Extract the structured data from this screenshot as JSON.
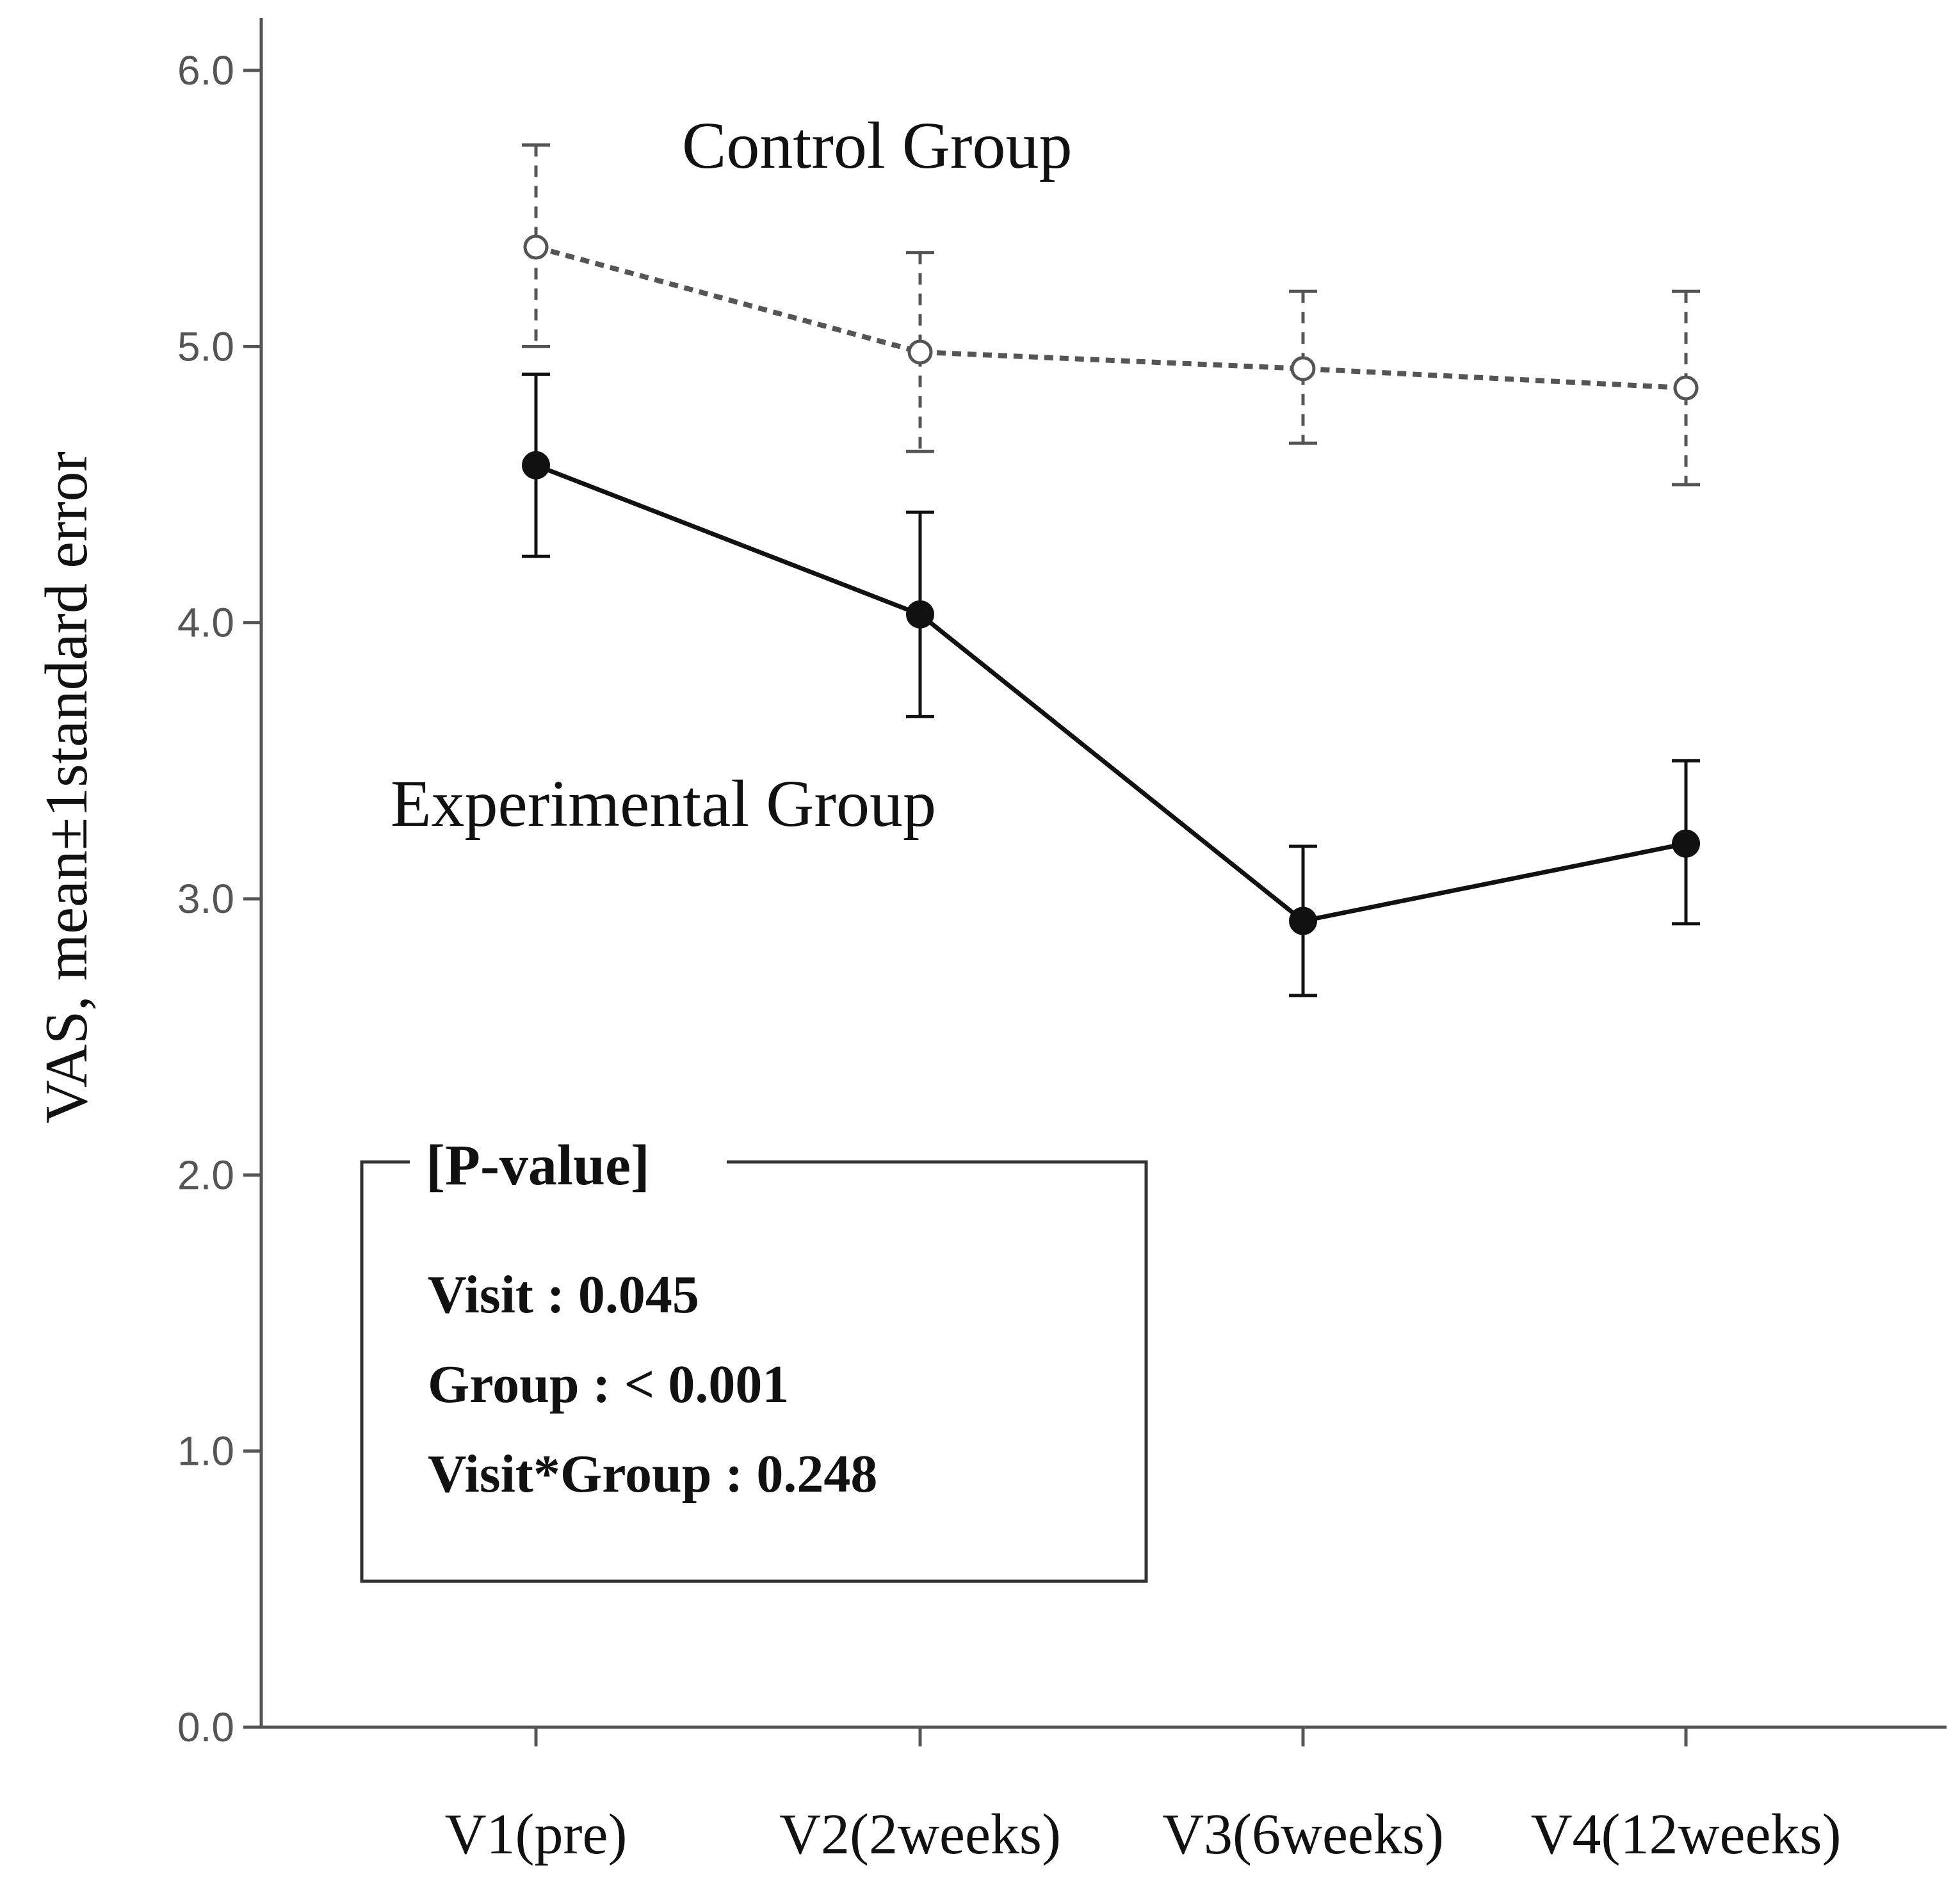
{
  "chart_data": {
    "type": "line",
    "title": "",
    "xlabel": "",
    "ylabel": "VAS, mean±1standard error",
    "ylim": [
      0,
      6
    ],
    "yticks": [
      "0.0",
      "1.0",
      "2.0",
      "3.0",
      "4.0",
      "5.0",
      "6.0"
    ],
    "categories": [
      "V1(pre)",
      "V2(2weeks)",
      "V3(6weeks)",
      "V4(12weeks)"
    ],
    "series": [
      {
        "name": "Control Group",
        "style": "dashed-open",
        "values": [
          5.36,
          4.98,
          4.92,
          4.85
        ],
        "error_low": [
          5.0,
          4.62,
          4.65,
          4.5
        ],
        "error_high": [
          5.73,
          5.34,
          5.2,
          5.2
        ]
      },
      {
        "name": "Experimental Group",
        "style": "solid-filled",
        "values": [
          4.57,
          4.03,
          2.92,
          3.2
        ],
        "error_low": [
          4.24,
          3.66,
          2.65,
          2.91
        ],
        "error_high": [
          4.9,
          4.4,
          3.19,
          3.5
        ]
      }
    ],
    "annotation": {
      "title": "[P-value]",
      "lines": [
        "Visit : 0.045",
        "Group : < 0.001",
        "Visit*Group : 0.248"
      ]
    },
    "grid": false,
    "legend": "inline labels"
  },
  "colors": {
    "axis": "#555555",
    "control": "#555555",
    "experimental": "#111111",
    "text": "#111111"
  }
}
